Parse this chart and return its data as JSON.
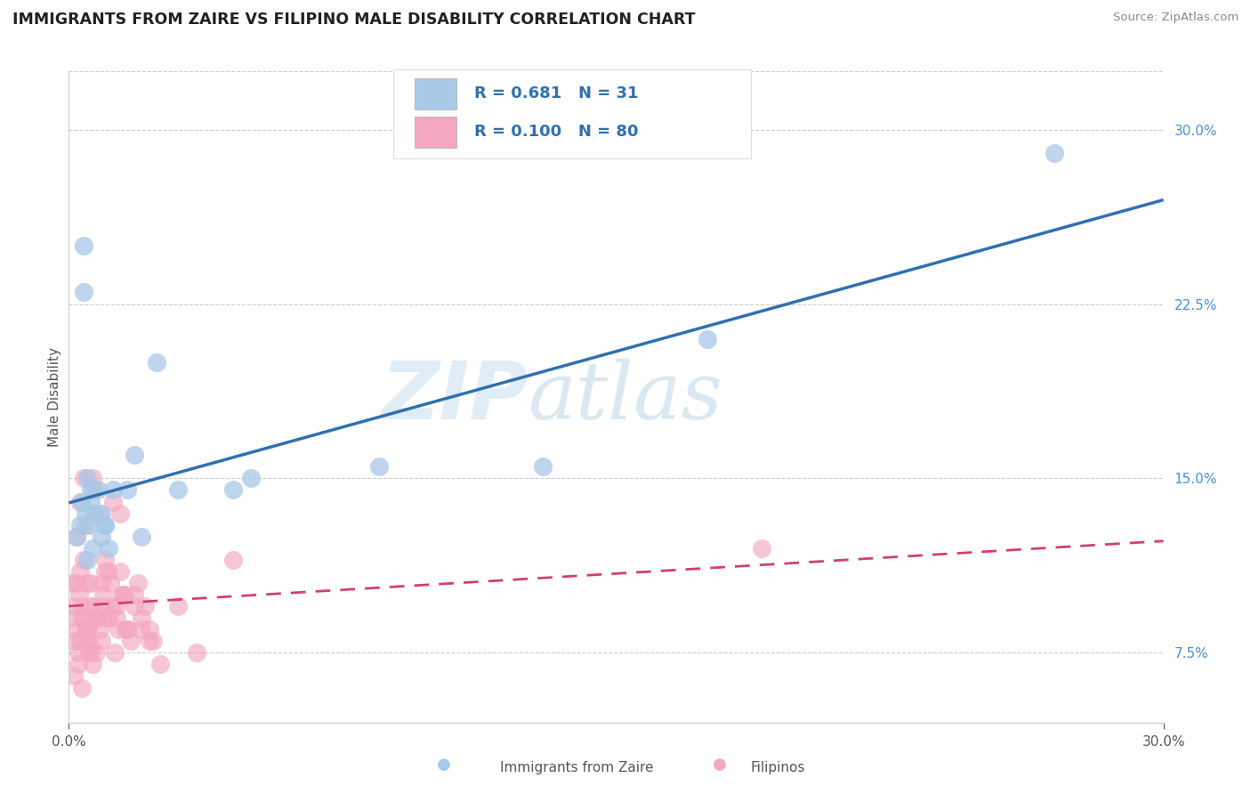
{
  "title": "IMMIGRANTS FROM ZAIRE VS FILIPINO MALE DISABILITY CORRELATION CHART",
  "source": "Source: ZipAtlas.com",
  "ylabel": "Male Disability",
  "xlim": [
    0.0,
    30.0
  ],
  "ylim": [
    4.5,
    32.5
  ],
  "y_ticks": [
    7.5,
    15.0,
    22.5,
    30.0
  ],
  "x_ticks": [
    0.0,
    30.0
  ],
  "zaire_color": "#a8c8e8",
  "filipino_color": "#f4a8c0",
  "zaire_line_color": "#3070b0",
  "filipino_line_color": "#d04070",
  "watermark_zip": "ZIP",
  "watermark_atlas": "atlas",
  "background_color": "#ffffff",
  "grid_color": "#cccccc",
  "R_zaire": "0.681",
  "N_zaire": "31",
  "R_filipino": "0.100",
  "N_filipino": "80",
  "zaire_x": [
    0.2,
    0.3,
    0.35,
    0.4,
    0.45,
    0.5,
    0.55,
    0.6,
    0.65,
    0.7,
    0.8,
    0.9,
    0.4,
    1.0,
    1.1,
    0.5,
    0.6,
    0.9,
    1.2,
    1.0,
    1.8,
    2.0,
    1.6,
    2.4,
    3.0,
    5.0,
    8.5,
    13.0,
    17.5,
    27.0,
    4.5
  ],
  "zaire_y": [
    12.5,
    13.0,
    14.0,
    25.0,
    13.5,
    11.5,
    13.0,
    14.5,
    12.0,
    13.5,
    14.5,
    12.5,
    23.0,
    13.0,
    12.0,
    15.0,
    14.0,
    13.5,
    14.5,
    13.0,
    16.0,
    12.5,
    14.5,
    20.0,
    14.5,
    15.0,
    15.5,
    15.5,
    21.0,
    29.0,
    14.5
  ],
  "filipino_x": [
    0.1,
    0.12,
    0.15,
    0.18,
    0.2,
    0.22,
    0.25,
    0.28,
    0.3,
    0.32,
    0.35,
    0.38,
    0.4,
    0.42,
    0.45,
    0.48,
    0.5,
    0.52,
    0.55,
    0.58,
    0.6,
    0.65,
    0.7,
    0.75,
    0.8,
    0.85,
    0.9,
    0.95,
    1.0,
    1.1,
    1.2,
    1.3,
    1.4,
    1.5,
    1.6,
    1.8,
    2.0,
    2.2,
    2.5,
    3.0,
    3.5,
    0.2,
    0.3,
    0.4,
    0.5,
    0.6,
    0.7,
    0.8,
    0.9,
    1.0,
    1.1,
    1.2,
    1.3,
    1.4,
    1.5,
    1.6,
    1.7,
    1.8,
    1.9,
    2.0,
    2.1,
    2.2,
    2.3,
    0.15,
    0.25,
    0.35,
    0.45,
    0.55,
    0.65,
    0.75,
    0.85,
    0.95,
    1.05,
    1.15,
    1.25,
    1.35,
    1.45,
    1.55,
    4.5,
    19.0
  ],
  "filipino_y": [
    10.5,
    9.5,
    9.0,
    8.0,
    10.5,
    8.5,
    7.0,
    10.0,
    11.0,
    8.0,
    9.0,
    9.5,
    11.5,
    9.0,
    13.0,
    8.0,
    10.5,
    8.5,
    7.5,
    9.5,
    10.5,
    15.0,
    14.5,
    9.0,
    9.0,
    13.5,
    8.0,
    10.0,
    11.0,
    9.0,
    14.0,
    9.5,
    13.5,
    10.0,
    8.5,
    10.0,
    8.5,
    8.0,
    7.0,
    9.5,
    7.5,
    12.5,
    14.0,
    15.0,
    8.5,
    7.5,
    9.5,
    9.0,
    10.5,
    11.5,
    11.0,
    9.5,
    9.0,
    11.0,
    10.0,
    8.5,
    8.0,
    9.5,
    10.5,
    9.0,
    9.5,
    8.5,
    8.0,
    6.5,
    7.5,
    6.0,
    8.5,
    8.0,
    7.0,
    7.5,
    8.5,
    9.5,
    9.0,
    10.5,
    7.5,
    8.5,
    10.0,
    8.5,
    11.5,
    12.0
  ]
}
